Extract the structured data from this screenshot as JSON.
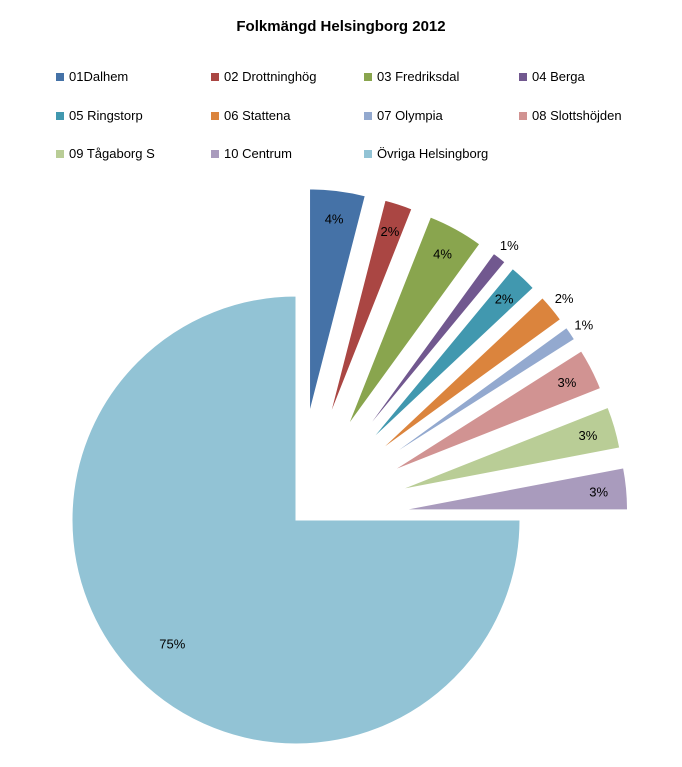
{
  "chart_data": {
    "type": "pie",
    "title": "Folkmängd Helsingborg 2012",
    "exploded": true,
    "legend_position": "top",
    "slices": [
      {
        "name": "01Dalhem",
        "value": 4,
        "label": "4%",
        "color": "#4572A7"
      },
      {
        "name": "02 Drottninghög",
        "value": 2,
        "label": "2%",
        "color": "#AA4643"
      },
      {
        "name": "03 Fredriksdal",
        "value": 4,
        "label": "4%",
        "color": "#89A54E"
      },
      {
        "name": "04 Berga",
        "value": 1,
        "label": "1%",
        "color": "#71588F"
      },
      {
        "name": "05 Ringstorp",
        "value": 2,
        "label": "2%",
        "color": "#4198AF"
      },
      {
        "name": "06 Stattena",
        "value": 2,
        "label": "2%",
        "color": "#DB843D"
      },
      {
        "name": "07 Olympia",
        "value": 1,
        "label": "1%",
        "color": "#93A9CF"
      },
      {
        "name": "08 Slottshöjden",
        "value": 3,
        "label": "3%",
        "color": "#D19392"
      },
      {
        "name": "09 Tågaborg S",
        "value": 3,
        "label": "3%",
        "color": "#B9CD96"
      },
      {
        "name": "10 Centrum",
        "value": 3,
        "label": "3%",
        "color": "#A99BBD"
      },
      {
        "name": "Övriga Helsingborg",
        "value": 75,
        "label": "75%",
        "color": "#92C3D5"
      }
    ]
  }
}
